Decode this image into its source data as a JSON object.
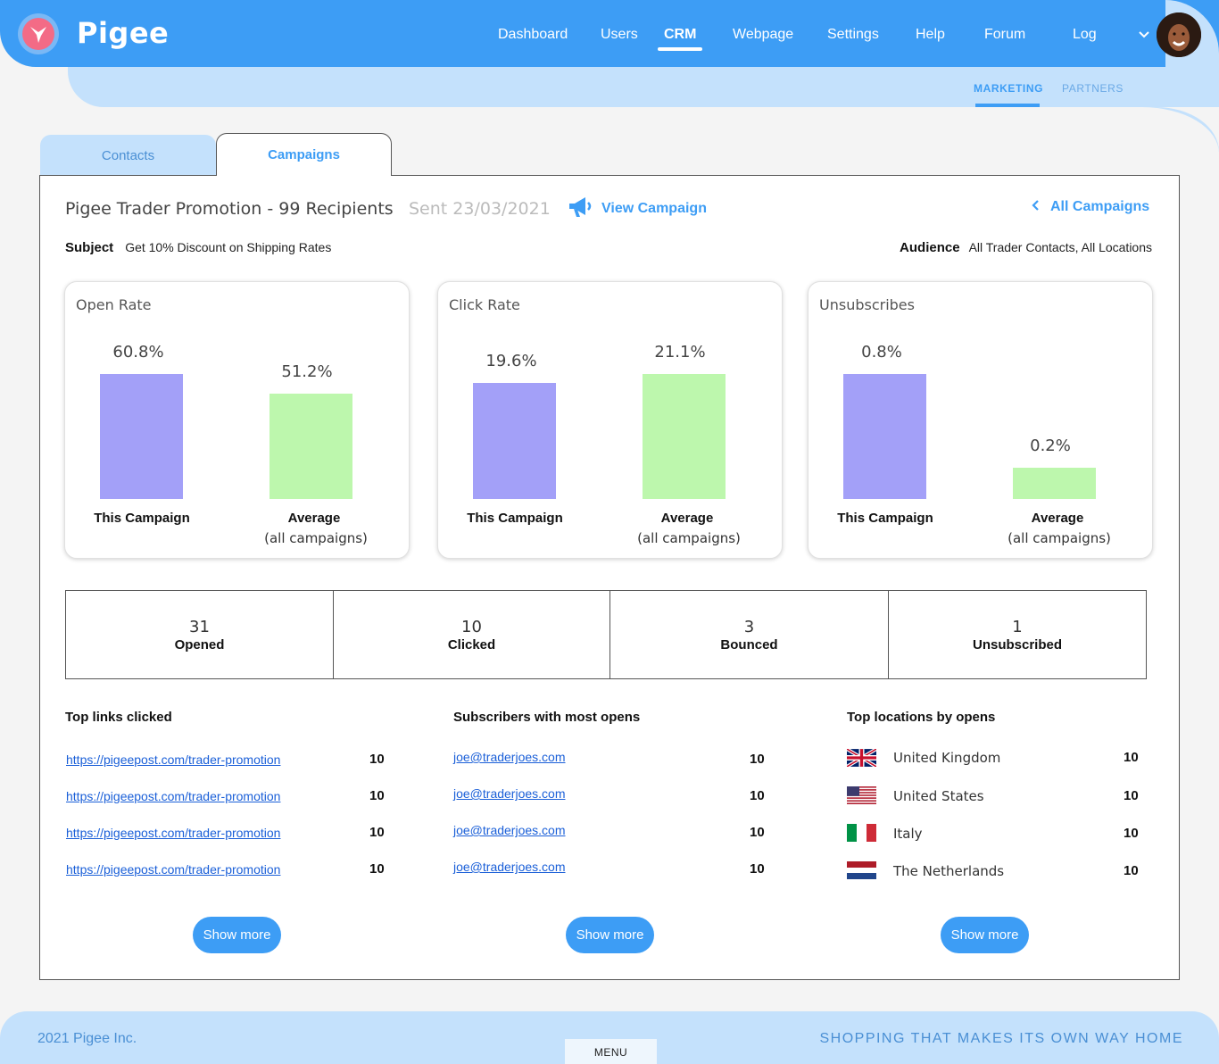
{
  "app": {
    "name": "Pigee"
  },
  "nav": {
    "items": [
      {
        "label": "Dashboard"
      },
      {
        "label": "Users"
      },
      {
        "label": "CRM"
      },
      {
        "label": "Webpage"
      },
      {
        "label": "Settings"
      },
      {
        "label": "Help"
      },
      {
        "label": "Forum"
      },
      {
        "label": "Log"
      }
    ],
    "active": "CRM"
  },
  "subnav": {
    "items": [
      {
        "label": "MARKETING"
      },
      {
        "label": "PARTNERS"
      }
    ],
    "active": "MARKETING"
  },
  "tabs": {
    "contacts": "Contacts",
    "campaigns": "Campaigns",
    "active": "Campaigns"
  },
  "campaign": {
    "title": "Pigee Trader Promotion - 99 Recipients",
    "sent": "Sent 23/03/2021",
    "view_label": "View Campaign",
    "all_label": "All Campaigns",
    "subject_label": "Subject",
    "subject": "Get 10% Discount on Shipping Rates",
    "audience_label": "Audience",
    "audience": "All Trader Contacts, All Locations"
  },
  "colors": {
    "accent": "#3d9df5",
    "campaign_bar": "#a3a0f8",
    "average_bar": "#bdf7ad",
    "light_band": "#c4e1fc"
  },
  "labels": {
    "this_campaign": "This Campaign",
    "average": "Average",
    "average_sub": "(all campaigns)"
  },
  "chart_data": [
    {
      "type": "bar",
      "title": "Open Rate",
      "categories": [
        "This Campaign",
        "Average"
      ],
      "values": [
        60.8,
        51.2
      ],
      "value_labels": [
        "60.8%",
        "51.2%"
      ]
    },
    {
      "type": "bar",
      "title": "Click Rate",
      "categories": [
        "This Campaign",
        "Average"
      ],
      "values": [
        19.6,
        21.1
      ],
      "value_labels": [
        "19.6%",
        "21.1%"
      ]
    },
    {
      "type": "bar",
      "title": "Unsubscribes",
      "categories": [
        "This Campaign",
        "Average"
      ],
      "values": [
        0.8,
        0.2
      ],
      "value_labels": [
        "0.8%",
        "0.2%"
      ]
    }
  ],
  "stats": [
    {
      "value": "31",
      "label": "Opened"
    },
    {
      "value": "10",
      "label": "Clicked"
    },
    {
      "value": "3",
      "label": "Bounced"
    },
    {
      "value": "1",
      "label": "Unsubscribed"
    }
  ],
  "top_links": {
    "heading": "Top links clicked",
    "rows": [
      {
        "url": "https://pigeepost.com/trader-promotion",
        "count": "10"
      },
      {
        "url": "https://pigeepost.com/trader-promotion",
        "count": "10"
      },
      {
        "url": "https://pigeepost.com/trader-promotion",
        "count": "10"
      },
      {
        "url": "https://pigeepost.com/trader-promotion",
        "count": "10"
      }
    ]
  },
  "top_subscribers": {
    "heading": "Subscribers with most opens",
    "rows": [
      {
        "email": "joe@traderjoes.com",
        "count": "10"
      },
      {
        "email": "joe@traderjoes.com",
        "count": "10"
      },
      {
        "email": "joe@traderjoes.com",
        "count": "10"
      },
      {
        "email": "joe@traderjoes.com",
        "count": "10"
      }
    ]
  },
  "top_locations": {
    "heading": "Top locations by opens",
    "rows": [
      {
        "country": "United Kingdom",
        "flag": "uk-flag-icon",
        "count": "10"
      },
      {
        "country": "United States",
        "flag": "us-flag-icon",
        "count": "10"
      },
      {
        "country": "Italy",
        "flag": "italy-flag-icon",
        "count": "10"
      },
      {
        "country": "The Netherlands",
        "flag": "netherlands-flag-icon",
        "count": "10"
      }
    ]
  },
  "show_more": "Show more",
  "footer": {
    "copyright": "2021 Pigee Inc.",
    "tagline": "SHOPPING THAT MAKES ITS OWN WAY HOME",
    "menu": "MENU"
  }
}
